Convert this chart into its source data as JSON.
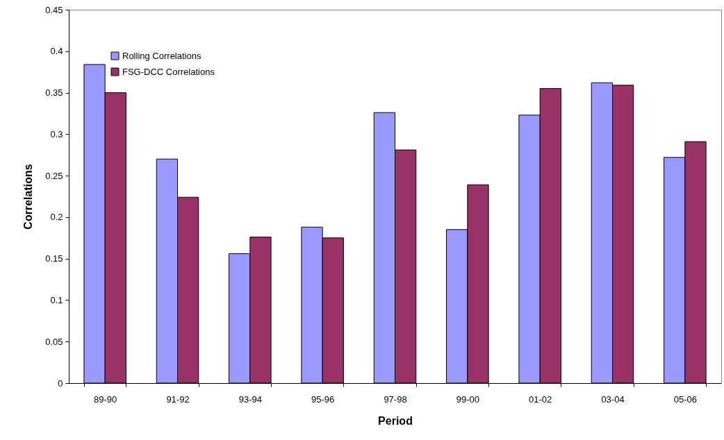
{
  "chart_data": {
    "type": "bar",
    "xlabel": "Period",
    "ylabel": "Correlations",
    "categories": [
      "89-90",
      "91-92",
      "93-94",
      "95-96",
      "97-98",
      "99-00",
      "01-02",
      "03-04",
      "05-06"
    ],
    "series": [
      {
        "name": "Rolling Correlations",
        "color": "#9999ff",
        "values": [
          0.384,
          0.27,
          0.156,
          0.188,
          0.326,
          0.185,
          0.323,
          0.362,
          0.272
        ]
      },
      {
        "name": "FSG-DCC Correlations",
        "color": "#993366",
        "values": [
          0.35,
          0.224,
          0.176,
          0.175,
          0.281,
          0.239,
          0.355,
          0.359,
          0.291
        ]
      }
    ],
    "ylim": [
      0,
      0.45
    ],
    "yticks": [
      0,
      0.05,
      0.1,
      0.15,
      0.2,
      0.25,
      0.3,
      0.35,
      0.4,
      0.45
    ],
    "grid": false,
    "legend": "top left"
  }
}
